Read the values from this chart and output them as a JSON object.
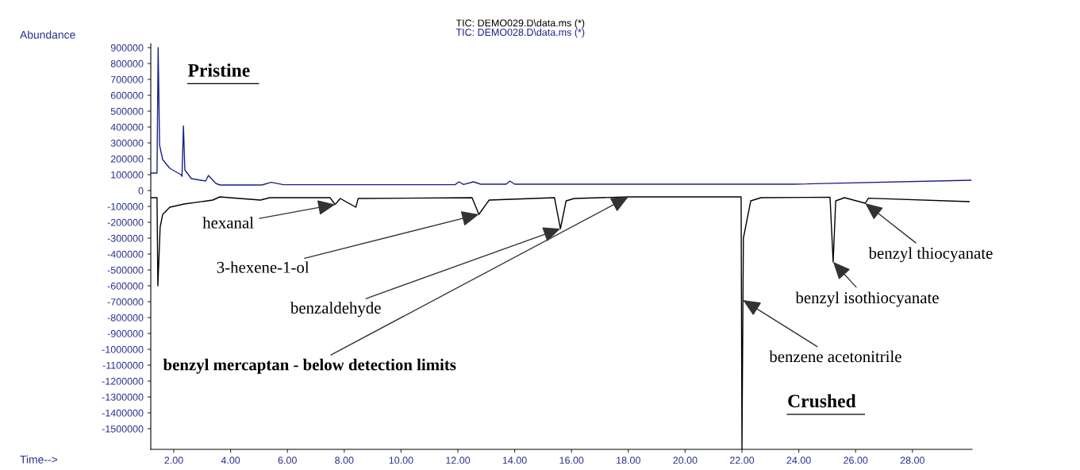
{
  "chart_data": {
    "type": "line",
    "xlabel": "Time-->",
    "ylabel": "Abundance",
    "xlim": [
      1.19,
      30.1
    ],
    "ylim": [
      -1630000,
      925000
    ],
    "xticks": [
      {
        "value": 2,
        "label": "2.00"
      },
      {
        "value": 4,
        "label": "4.00"
      },
      {
        "value": 6,
        "label": "6.00"
      },
      {
        "value": 8,
        "label": "8.00"
      },
      {
        "value": 10,
        "label": "10.00"
      },
      {
        "value": 12,
        "label": "12.00"
      },
      {
        "value": 14,
        "label": "14.00"
      },
      {
        "value": 16,
        "label": "16.00"
      },
      {
        "value": 18,
        "label": "18.00"
      },
      {
        "value": 20,
        "label": "20.00"
      },
      {
        "value": 22,
        "label": "22.00"
      },
      {
        "value": 24,
        "label": "24.00"
      },
      {
        "value": 26,
        "label": "26.00"
      },
      {
        "value": 28,
        "label": "28.00"
      }
    ],
    "yticks": [
      900000,
      800000,
      700000,
      600000,
      500000,
      400000,
      300000,
      200000,
      100000,
      0,
      -100000,
      -200000,
      -300000,
      -400000,
      -500000,
      -600000,
      -700000,
      -800000,
      -900000,
      -1000000,
      -1100000,
      -1200000,
      -1300000,
      -1400000,
      -1500000
    ],
    "grid": false,
    "legend": "top",
    "marker": "none",
    "line_style": "solid",
    "series": [
      {
        "name": "TIC: DEMO029.D\\data.ms (*)",
        "color": "#000000",
        "x": [
          1.19,
          1.41,
          1.44,
          1.52,
          1.61,
          1.86,
          2.36,
          3.37,
          3.62,
          5.05,
          5.38,
          7.5,
          7.68,
          7.86,
          8.41,
          8.49,
          12.5,
          12.74,
          13.1,
          15.4,
          15.61,
          15.81,
          16.1,
          18.0,
          21.97,
          22.0,
          22.035,
          22.05,
          22.31,
          22.67,
          25.1,
          25.21,
          25.3,
          25.61,
          26.34,
          26.45,
          30.0
        ],
        "values": [
          -45000,
          -45000,
          -600000,
          -230000,
          -150000,
          -105000,
          -85000,
          -60000,
          -40000,
          -60000,
          -45000,
          -45000,
          -88000,
          -50000,
          -105000,
          -50000,
          -45000,
          -150000,
          -60000,
          -45000,
          -240000,
          -65000,
          -50000,
          -40000,
          -40000,
          -1630000,
          -690000,
          -300000,
          -65000,
          -45000,
          -42000,
          -450000,
          -65000,
          -45000,
          -80000,
          -48000,
          -70000
        ]
      },
      {
        "name": "TIC: DEMO028.D\\data.ms (*)",
        "color": "#1a1f8c",
        "x": [
          1.19,
          1.41,
          1.45,
          1.5,
          1.61,
          1.86,
          2.25,
          2.29,
          2.34,
          2.39,
          2.62,
          3.12,
          3.22,
          3.48,
          3.62,
          5.1,
          5.43,
          5.86,
          11.9,
          12.04,
          12.2,
          12.55,
          12.8,
          13.7,
          13.83,
          14.0,
          23.85,
          30.06
        ],
        "values": [
          110000,
          110000,
          900000,
          285000,
          195000,
          140000,
          100000,
          90000,
          407000,
          130000,
          75000,
          60000,
          95000,
          45000,
          35000,
          35000,
          52000,
          37000,
          37000,
          55000,
          38000,
          55000,
          40000,
          40000,
          60000,
          40000,
          40000,
          65000
        ]
      }
    ],
    "annotations": [
      "Pristine",
      "Crushed",
      {
        "text": "hexanal",
        "x": 7.68,
        "y": -88000
      },
      {
        "text": "3-hexene-1-ol",
        "x": 12.74,
        "y": -150000
      },
      {
        "text": "benzaldehyde",
        "x": 15.61,
        "y": -240000
      },
      {
        "text": "benzyl mercaptan - below detection limits",
        "x": 18.0,
        "y": -40000
      },
      {
        "text": "benzene acetonitrile",
        "x": 22.035,
        "y": -690000
      },
      {
        "text": "benzyl isothiocyanate",
        "x": 25.21,
        "y": -450000
      },
      {
        "text": "benzyl thiocyanate",
        "x": 26.34,
        "y": -80000
      }
    ]
  }
}
